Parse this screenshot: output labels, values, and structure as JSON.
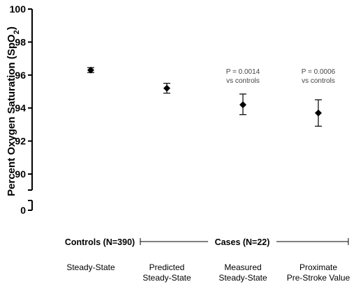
{
  "chart_data": {
    "type": "scatter",
    "ylabel": "Percent Oxygen Saturation (SpO",
    "ylabel_sub": "2",
    "ylabel_end": ")",
    "yticks": [
      "0",
      "90",
      "92",
      "94",
      "96",
      "98",
      "100"
    ],
    "ylim": [
      89,
      100
    ],
    "axis_break": true,
    "grid": false,
    "categories": [
      {
        "line1": "Steady-State",
        "line2": ""
      },
      {
        "line1": "Predicted",
        "line2": "Steady-State"
      },
      {
        "line1": "Measured",
        "line2": "Steady-State"
      },
      {
        "line1": "Proximate",
        "line2": "Pre-Stroke Value"
      }
    ],
    "points": [
      {
        "mean": 96.3,
        "low": 96.15,
        "high": 96.45,
        "p_line1": "",
        "p_line2": ""
      },
      {
        "mean": 95.2,
        "low": 94.9,
        "high": 95.5,
        "p_line1": "",
        "p_line2": ""
      },
      {
        "mean": 94.2,
        "low": 93.6,
        "high": 94.85,
        "p_line1": "P = 0.0014",
        "p_line2": "vs controls"
      },
      {
        "mean": 93.7,
        "low": 92.9,
        "high": 94.5,
        "p_line1": "P = 0.0006",
        "p_line2": "vs controls"
      }
    ],
    "groups": {
      "controls": "Controls (N=390)",
      "cases": "Cases (N=22)"
    }
  }
}
